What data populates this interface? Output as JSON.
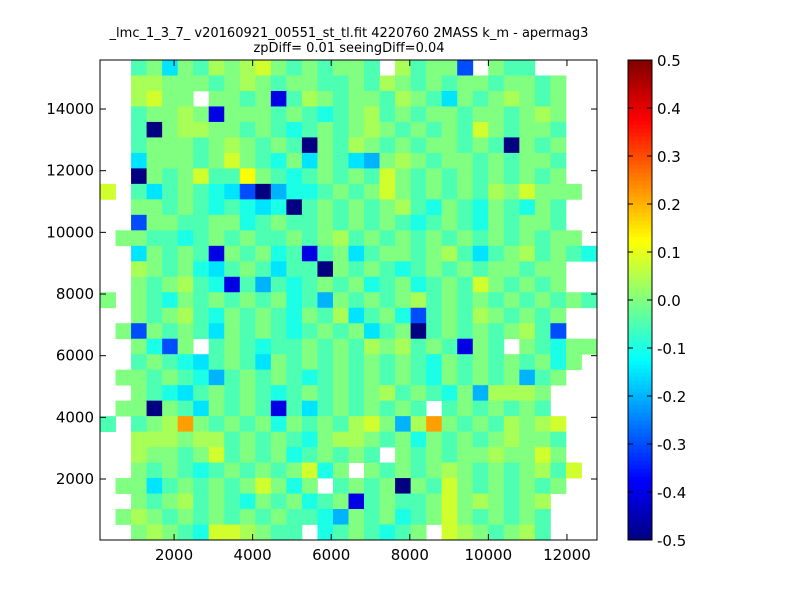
{
  "chart_data": {
    "type": "heatmap",
    "title": [
      "_lmc_1_3_7_ v20160921_00551_st_tl.fit 4220760 2MASS k_m - apermag3",
      "zpDiff= 0.01 seeingDiff=0.04"
    ],
    "xlabel": "",
    "ylabel": "",
    "xlim": [
      115,
      12765
    ],
    "ylim": [
      22,
      15590
    ],
    "xticks": [
      2000,
      4000,
      6000,
      8000,
      10000,
      12000
    ],
    "yticks": [
      2000,
      4000,
      6000,
      8000,
      10000,
      12000,
      14000
    ],
    "colormap": "jet",
    "colorbar": {
      "range": [
        -0.5,
        0.5
      ],
      "ticks": [
        "-0.5",
        "-0.4",
        "-0.3",
        "-0.2",
        "-0.1",
        "0.0",
        "0.1",
        "0.2",
        "0.3",
        "0.4",
        "0.5"
      ]
    },
    "grid_note": "rows listed top (high y) to bottom; '.' = no data",
    "value_codes": {
      "A": -0.5,
      "B": -0.4,
      "C": -0.3,
      "D": -0.2,
      "E": -0.15,
      "F": -0.1,
      "G": -0.05,
      "H": 0.0,
      "I": 0.04,
      "J": 0.08,
      "K": 0.12,
      "L": 0.22
    },
    "grid": [
      "..GHEHGIHIJHGHGHHG.IGHHC.HGG....",
      "..IIHHHGHIHGHHGGHGIHGHGHHGHHGH..",
      "..IJHH.HHGHBGIHGHHGIHGEHGHIHGH..",
      "..GHHIHBHHHGHGFGHIGHGHHGHHGHIH..",
      "..GAHIIHHGHGFGHGHIHGHGHGJHGHHG..",
      "..GHHHGHIHGHGAHGIHGHGHHGHGAHGH..",
      "..EHHHGHJHGFHEHGEDHIHGHHGHGHHG..",
      "..AHGHJGGKHGFGHGHGJHGHGHGHGHGH..",
      "J.GEGHGFECADFFGHGHJHGHGHGIHJHHH.",
      "..HHGHGFGFEFAGHGHGHIGFHGFHGFHG..",
      "..CHHGGHHFGHGGHGHGHGFGHGFHGHHG..",
      ".HHGGFGHGHGGHGHIGHGHGHGHGHGHGHH.",
      "..EHGHGBHGHFGBGHEGHHGHIGEGHIGHGF",
      "..IHGHFEGHGEGGAHGHGFGHGHGHHGHH..",
      "..HGHIGFBGDGFGHGHFGHFGHGJHGHGH..",
      "H.HGFHGHGHGHFGDHGHGHIGHGHGHGHGHG",
      "..HGHIGFHGHGFHGIEGHFCGHGIHGHGH..",
      ".HCHGHGEHGHGFGHGHEGHAGHGHGHIGC..",
      "..HFCH.GHGFGGHGHGIHIGHGBHG.HGFHH",
      "..GHGFEGHGEHGHGHGHGHGFHGHGHGHFH.",
      ".HHGHGFDGHGHGFGHGHGHGFHGHGHDGH..",
      "..HGFEGHGHGFGHGHGHIGHGFHDIIIH...",
      ".HHAHGEHGHGBGEGHGHGHG.GHGHGHG...",
      "G.GHILHGHGHFHGHGIJHDILHGHGIHIJ..",
      "..IIIHIIGHGHGFHIIHGHFHGHGHIHHG..",
      "..IHHGHJGHGHFGHGHG.HGHGHHIHHJH..",
      "..HGHGFGHGHGHJFH.HGHGHIHGHGHIGJ.",
      ".HHEGHGHGHJHFH.GHGHAHGJHGHGHGH..",
      "..HGHIGHGFHGHFGHBGHGGHJHIHGHI...",
      ".HIHGHGHGHGHGGFDHGHFGHJHGHGHG...",
      "..HIHGFJJIHGG.FGHGFGH.JIHGHIG..."
    ]
  }
}
